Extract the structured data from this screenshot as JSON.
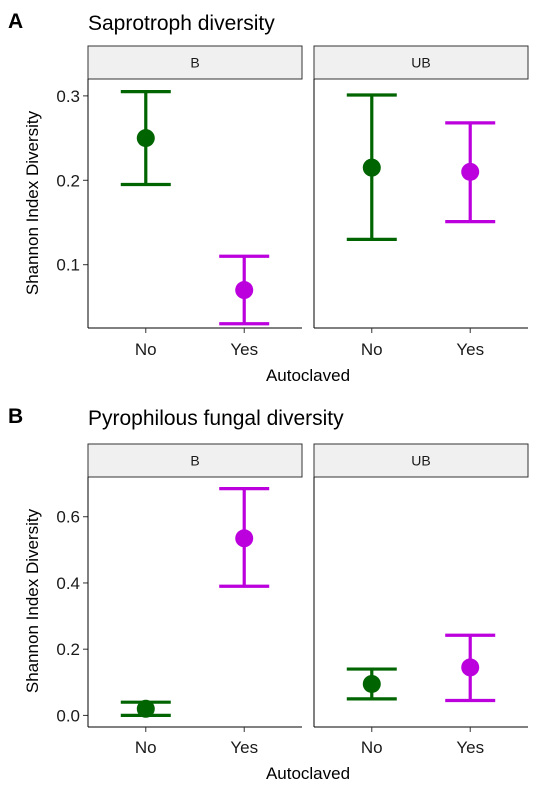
{
  "chart_data": [
    {
      "type": "errorbar",
      "panel_label": "A",
      "title": "Saprotroph diversity",
      "xlabel": "Autoclaved",
      "ylabel": "Shannon Index Diversity",
      "ylim": [
        0.025,
        0.32
      ],
      "yticks": [
        0.1,
        0.2,
        0.3
      ],
      "ytick_labels": [
        "0.1",
        "0.2",
        "0.3"
      ],
      "categories": [
        "No",
        "Yes"
      ],
      "facets": [
        {
          "label": "B",
          "points": [
            {
              "x": "No",
              "mean": 0.25,
              "lower": 0.195,
              "upper": 0.305
            },
            {
              "x": "Yes",
              "mean": 0.07,
              "lower": 0.03,
              "upper": 0.11
            }
          ]
        },
        {
          "label": "UB",
          "points": [
            {
              "x": "No",
              "mean": 0.215,
              "lower": 0.13,
              "upper": 0.301
            },
            {
              "x": "Yes",
              "mean": 0.21,
              "lower": 0.151,
              "upper": 0.268
            }
          ]
        }
      ],
      "colors": {
        "No": "#006400",
        "Yes": "#bb00dd"
      }
    },
    {
      "type": "errorbar",
      "panel_label": "B",
      "title": "Pyrophilous fungal diversity",
      "xlabel": "Autoclaved",
      "ylabel": "Shannon Index Diversity",
      "ylim": [
        -0.035,
        0.72
      ],
      "yticks": [
        0.0,
        0.2,
        0.4,
        0.6
      ],
      "ytick_labels": [
        "0.0",
        "0.2",
        "0.4",
        "0.6"
      ],
      "categories": [
        "No",
        "Yes"
      ],
      "facets": [
        {
          "label": "B",
          "points": [
            {
              "x": "No",
              "mean": 0.02,
              "lower": 0.0,
              "upper": 0.04
            },
            {
              "x": "Yes",
              "mean": 0.535,
              "lower": 0.39,
              "upper": 0.685
            }
          ]
        },
        {
          "label": "UB",
          "points": [
            {
              "x": "No",
              "mean": 0.095,
              "lower": 0.05,
              "upper": 0.14
            },
            {
              "x": "Yes",
              "mean": 0.145,
              "lower": 0.045,
              "upper": 0.242
            }
          ]
        }
      ],
      "colors": {
        "No": "#006400",
        "Yes": "#bb00dd"
      }
    }
  ]
}
